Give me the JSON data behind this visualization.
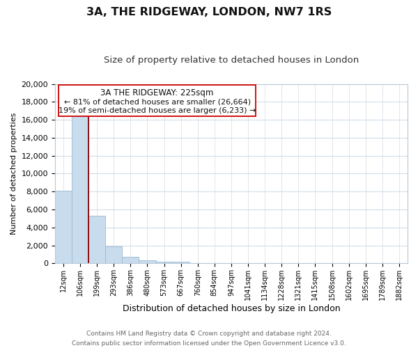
{
  "title": "3A, THE RIDGEWAY, LONDON, NW7 1RS",
  "subtitle": "Size of property relative to detached houses in London",
  "xlabel": "Distribution of detached houses by size in London",
  "ylabel": "Number of detached properties",
  "bar_color": "#c8dcee",
  "bar_edge_color": "#9ab8d0",
  "vline_color": "#8b0000",
  "categories": [
    "12sqm",
    "106sqm",
    "199sqm",
    "293sqm",
    "386sqm",
    "480sqm",
    "573sqm",
    "667sqm",
    "760sqm",
    "854sqm",
    "947sqm",
    "1041sqm",
    "1134sqm",
    "1228sqm",
    "1321sqm",
    "1415sqm",
    "1508sqm",
    "1602sqm",
    "1695sqm",
    "1789sqm",
    "1882sqm"
  ],
  "values": [
    8100,
    16600,
    5300,
    1900,
    750,
    300,
    200,
    150,
    0,
    0,
    0,
    0,
    0,
    0,
    0,
    0,
    0,
    0,
    0,
    0,
    0
  ],
  "ylim": [
    0,
    20000
  ],
  "yticks": [
    0,
    2000,
    4000,
    6000,
    8000,
    10000,
    12000,
    14000,
    16000,
    18000,
    20000
  ],
  "vline_x": 1.5,
  "annotation_text_line1": "3A THE RIDGEWAY: 225sqm",
  "annotation_text_line2": "← 81% of detached houses are smaller (26,664)",
  "annotation_text_line3": "19% of semi-detached houses are larger (6,233) →",
  "footer_text": "Contains HM Land Registry data © Crown copyright and database right 2024.\nContains public sector information licensed under the Open Government Licence v3.0.",
  "background_color": "#ffffff",
  "plot_bg_color": "#ffffff",
  "grid_color": "#d0dce8"
}
